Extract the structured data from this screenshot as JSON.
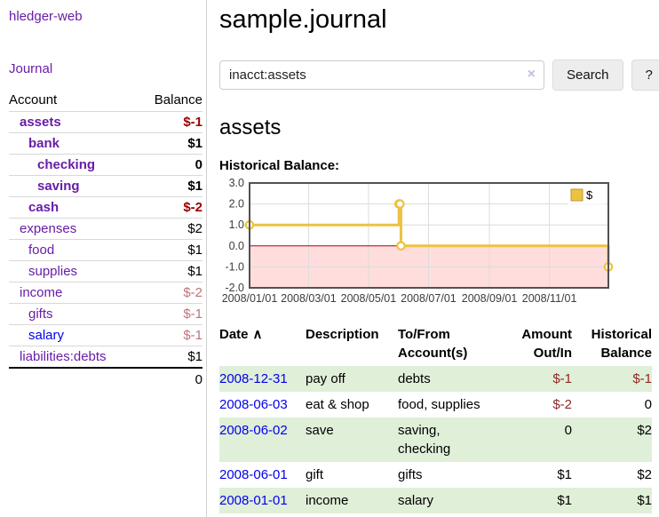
{
  "app": {
    "title": "hledger-web"
  },
  "nav": {
    "journal_label": "Journal"
  },
  "colors": {
    "accent_purple": "#681da8",
    "link_blue": "#0000ee",
    "negative_bold": "#990000",
    "negative_faint": "#bd7479",
    "table_negative": "#8f2727",
    "row_green": "#e0efd8",
    "chart_gold": "#edc240",
    "chart_negative_bg": "#ffdddd",
    "chart_zero_line": "#aa0000",
    "clear_icon_lavender": "#c7bcdd"
  },
  "sidebar_table": {
    "headers": {
      "account": "Account",
      "balance": "Balance"
    },
    "rows": [
      {
        "name": "assets",
        "depth": 1,
        "bold": true,
        "balance": "$-1",
        "neg": true
      },
      {
        "name": "bank",
        "depth": 2,
        "bold": true,
        "balance": "$1"
      },
      {
        "name": "checking",
        "depth": 3,
        "bold": true,
        "balance": "0"
      },
      {
        "name": "saving",
        "depth": 3,
        "bold": true,
        "balance": "$1"
      },
      {
        "name": "cash",
        "depth": 2,
        "bold": true,
        "balance": "$-2",
        "neg": true
      },
      {
        "name": "expenses",
        "depth": 1,
        "bold": false,
        "balance": "$2"
      },
      {
        "name": "food",
        "depth": 2,
        "bold": false,
        "balance": "$1"
      },
      {
        "name": "supplies",
        "depth": 2,
        "bold": false,
        "balance": "$1"
      },
      {
        "name": "income",
        "depth": 1,
        "bold": false,
        "balance": "$-2",
        "faint": true
      },
      {
        "name": "gifts",
        "depth": 2,
        "bold": false,
        "balance": "$-1",
        "faint": true
      },
      {
        "name": "salary",
        "depth": 2,
        "bold": false,
        "blue": true,
        "balance": "$-1",
        "faint": true
      },
      {
        "name": "liabilities:debts",
        "depth": 1,
        "bold": false,
        "balance": "$1"
      }
    ],
    "total": "0"
  },
  "header": {
    "title": "sample.journal"
  },
  "search": {
    "value": "inacct:assets",
    "clear_icon": "×",
    "button_label": "Search",
    "help_label": "?"
  },
  "account_page": {
    "heading": "assets",
    "chart_label": "Historical Balance:"
  },
  "chart_data": {
    "type": "line",
    "title": "Historical Balance:",
    "series": [
      {
        "name": "$",
        "color": "#edc240",
        "style": "step-after",
        "markers": true,
        "points": [
          [
            "2008-01-01",
            1
          ],
          [
            "2008-06-01",
            2
          ],
          [
            "2008-06-02",
            2
          ],
          [
            "2008-06-03",
            0
          ],
          [
            "2008-12-31",
            -1
          ]
        ]
      }
    ],
    "x_range": [
      "2008-01-01",
      "2008-12-31"
    ],
    "x_ticks": [
      "2008/01/01",
      "2008/03/01",
      "2008/05/01",
      "2008/07/01",
      "2008/09/01",
      "2008/11/01"
    ],
    "y_ticks": [
      3.0,
      2.0,
      1.0,
      0.0,
      -1.0,
      -2.0
    ],
    "ylim": [
      -2,
      3
    ],
    "grid": true,
    "legend_position": "top-right",
    "negative_region_color": "#ffdddd",
    "zero_line_color": "#aa0000"
  },
  "register_table": {
    "sort_icon": "∧",
    "columns": [
      {
        "id": "date",
        "lines": [
          "Date"
        ],
        "sortable": true
      },
      {
        "id": "description",
        "lines": [
          "Description"
        ]
      },
      {
        "id": "accounts",
        "lines": [
          "To/From",
          "Account(s)"
        ]
      },
      {
        "id": "amount",
        "lines": [
          "Amount",
          "Out/In"
        ],
        "align": "right"
      },
      {
        "id": "balance",
        "lines": [
          "Historical",
          "Balance"
        ],
        "align": "right"
      }
    ],
    "rows": [
      {
        "date": "2008-12-31",
        "description": "pay off",
        "accounts": "debts",
        "amount": "$-1",
        "balance": "$-1"
      },
      {
        "date": "2008-06-03",
        "description": "eat & shop",
        "accounts": "food, supplies",
        "amount": "$-2",
        "balance": "0"
      },
      {
        "date": "2008-06-02",
        "description": "save",
        "accounts": "saving, checking",
        "amount": "0",
        "balance": "$2"
      },
      {
        "date": "2008-06-01",
        "description": "gift",
        "accounts": "gifts",
        "amount": "$1",
        "balance": "$2"
      },
      {
        "date": "2008-01-01",
        "description": "income",
        "accounts": "salary",
        "amount": "$1",
        "balance": "$1"
      }
    ]
  }
}
